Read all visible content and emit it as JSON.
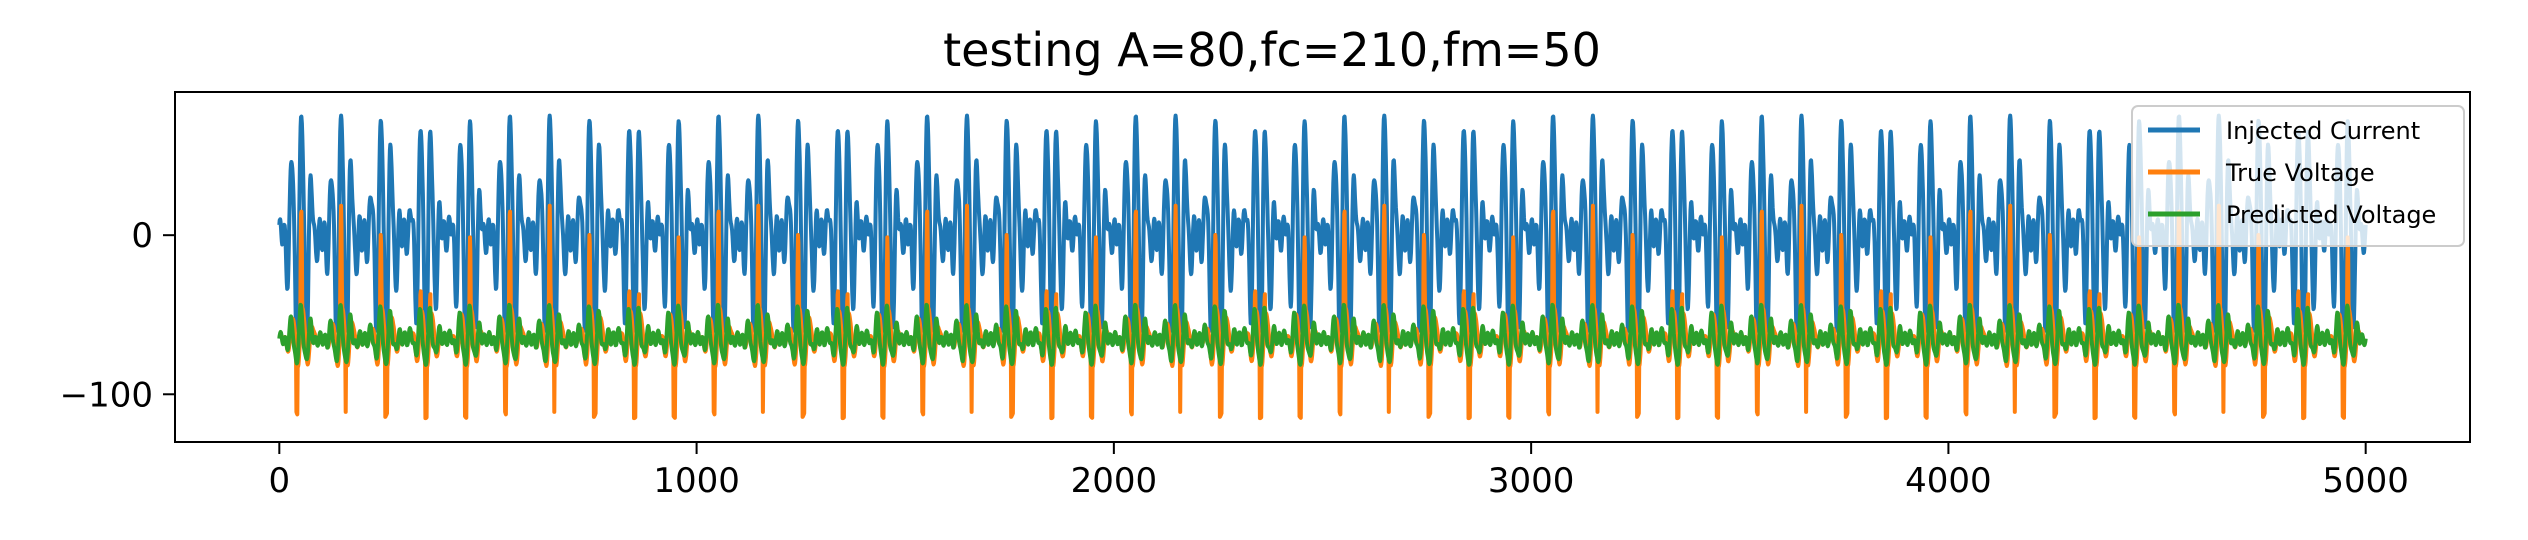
{
  "chart_data": {
    "type": "line",
    "title": "testing A=80,fc=210,fm=50",
    "xlabel": "",
    "ylabel": "",
    "xlim": [
      -250,
      5250
    ],
    "ylim": [
      -130,
      90
    ],
    "xticks": [
      0,
      1000,
      2000,
      3000,
      4000,
      5000
    ],
    "xtick_labels": [
      "0",
      "1000",
      "2000",
      "3000",
      "4000",
      "5000"
    ],
    "yticks": [
      0,
      -100
    ],
    "ytick_labels": [
      "0",
      "−100"
    ],
    "grid": false,
    "legend_position": "top-right",
    "n_samples": 5000,
    "series": [
      {
        "name": "Injected Current",
        "color": "#1f77b4",
        "amplitude": 80,
        "carrier_frequency": 210,
        "modulation_frequency": 50,
        "min": -60,
        "max": 80
      },
      {
        "name": "True Voltage",
        "color": "#ff7f0e",
        "resting": -65,
        "min": -118,
        "max": 48
      },
      {
        "name": "Predicted Voltage",
        "color": "#2ca02c",
        "resting": -65,
        "min": -92,
        "max": -40
      }
    ]
  }
}
